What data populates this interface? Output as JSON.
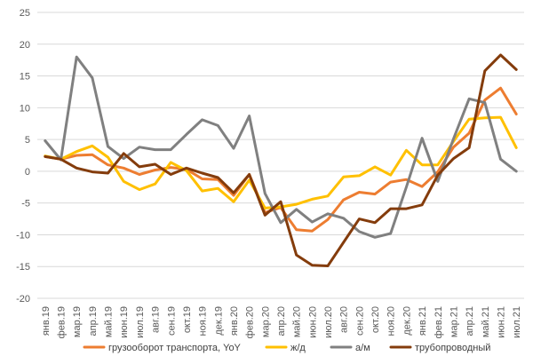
{
  "chart_data": {
    "type": "line",
    "title": "",
    "xlabel": "",
    "ylabel": "",
    "ylim": [
      -20,
      25
    ],
    "yticks": [
      25,
      20,
      15,
      10,
      5,
      0,
      -5,
      -10,
      -15,
      -20
    ],
    "grid": "horizontal",
    "legend_position": "bottom",
    "categories": [
      "янв.19",
      "фев.19",
      "мар.19",
      "апр.19",
      "май.19",
      "июн.19",
      "июл.19",
      "авг.19",
      "сен.19",
      "окт.19",
      "ноя.19",
      "дек.19",
      "янв.20",
      "фев.20",
      "мар.20",
      "апр.20",
      "май.20",
      "июн.20",
      "июл.20",
      "авг.20",
      "сен.20",
      "окт.20",
      "ноя.20",
      "дек.20",
      "янв.21",
      "фев.21",
      "мар.21",
      "апр.21",
      "май.21",
      "июн.21",
      "июл.21"
    ],
    "series": [
      {
        "name": "грузооборот транспорта, YoY",
        "color": "#ED7D31",
        "values": [
          2.3,
          1.9,
          2.5,
          2.6,
          1.0,
          0.5,
          -0.5,
          0.2,
          0.6,
          0.3,
          -1.2,
          -1.3,
          -3.8,
          -0.5,
          -6.5,
          -5.7,
          -9.2,
          -9.4,
          -7.6,
          -4.5,
          -3.3,
          -3.6,
          -1.7,
          -1.3,
          -2.4,
          -0.1,
          3.8,
          6.0,
          11.2,
          13.1,
          9.0
        ]
      },
      {
        "name": "ж/д",
        "color": "#FFC000",
        "values": [
          2.4,
          1.9,
          3.1,
          4.0,
          2.2,
          -1.6,
          -2.9,
          -2.0,
          1.4,
          0.1,
          -3.1,
          -2.7,
          -4.8,
          -1.4,
          -5.8,
          -5.6,
          -5.2,
          -4.4,
          -3.9,
          -0.9,
          -0.7,
          0.7,
          -0.6,
          3.3,
          1.0,
          1.0,
          4.7,
          8.2,
          8.4,
          8.5,
          3.7
        ]
      },
      {
        "name": "а/м",
        "color": "#808080",
        "values": [
          4.8,
          1.8,
          18.0,
          14.7,
          3.9,
          2.0,
          3.8,
          3.4,
          3.4,
          5.8,
          8.1,
          7.2,
          3.6,
          8.7,
          -3.5,
          -8.1,
          -6.0,
          -8.0,
          -6.7,
          -7.4,
          -9.5,
          -10.4,
          -9.8,
          -2.5,
          5.2,
          -1.6,
          5.1,
          11.4,
          10.8,
          1.9,
          0.0
        ]
      },
      {
        "name": "трубопроводный",
        "color": "#843C0C",
        "values": [
          2.3,
          1.9,
          0.5,
          -0.1,
          -0.3,
          2.8,
          0.7,
          1.1,
          -0.5,
          0.5,
          -0.3,
          -1.0,
          -3.4,
          -0.5,
          -6.9,
          -4.8,
          -13.2,
          -14.8,
          -14.9,
          -11.2,
          -7.5,
          -8.1,
          -5.9,
          -5.9,
          -5.3,
          -0.6,
          2.0,
          3.7,
          15.8,
          18.3,
          16.0
        ]
      }
    ]
  }
}
